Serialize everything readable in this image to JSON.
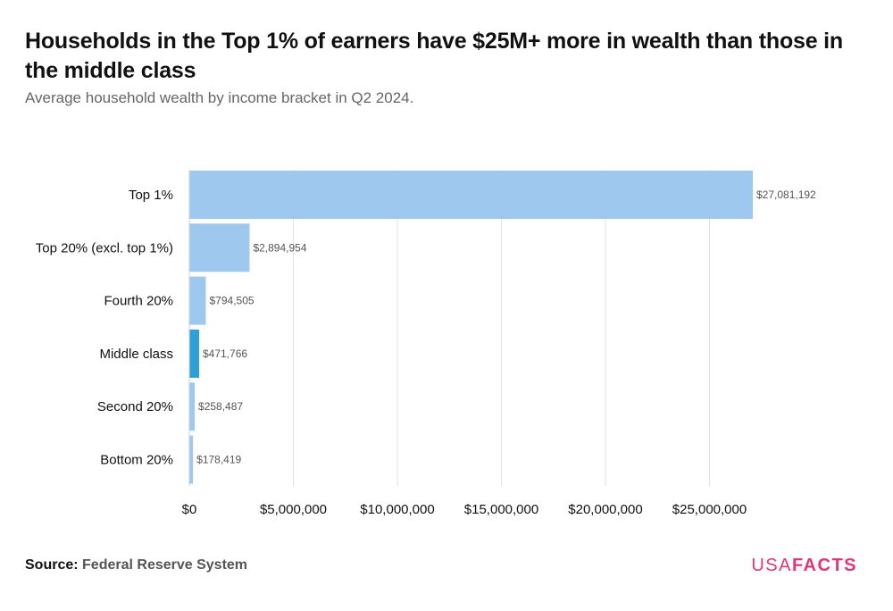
{
  "title": "Households in the Top 1% of earners have $25M+ more in wealth than those in the middle class",
  "subtitle": "Average household wealth by income bracket in Q2 2024.",
  "source_label": "Source:",
  "source_value": "Federal Reserve System",
  "logo": {
    "part1": "USA",
    "part2": "FACTS"
  },
  "colors": {
    "bar": "#9fc8ee",
    "highlight": "#2e9fd8",
    "grid": "#e3e3e3",
    "logo": "#e0357a"
  },
  "chart_data": {
    "type": "bar",
    "orientation": "horizontal",
    "categories": [
      "Top 1%",
      "Top 20% (excl. top 1%)",
      "Fourth 20%",
      "Middle class",
      "Second 20%",
      "Bottom 20%"
    ],
    "values": [
      27081192,
      2894954,
      794505,
      471766,
      258487,
      178419
    ],
    "value_labels": [
      "$27,081,192",
      "$2,894,954",
      "$794,505",
      "$471,766",
      "$258,487",
      "$178,419"
    ],
    "highlight": "Middle class",
    "xlim": [
      0,
      30000000
    ],
    "xticks": [
      0,
      5000000,
      10000000,
      15000000,
      20000000,
      25000000
    ],
    "xtick_labels": [
      "$0",
      "$5,000,000",
      "$10,000,000",
      "$15,000,000",
      "$20,000,000",
      "$25,000,000"
    ],
    "grid": true,
    "xlabel": "",
    "ylabel": ""
  }
}
